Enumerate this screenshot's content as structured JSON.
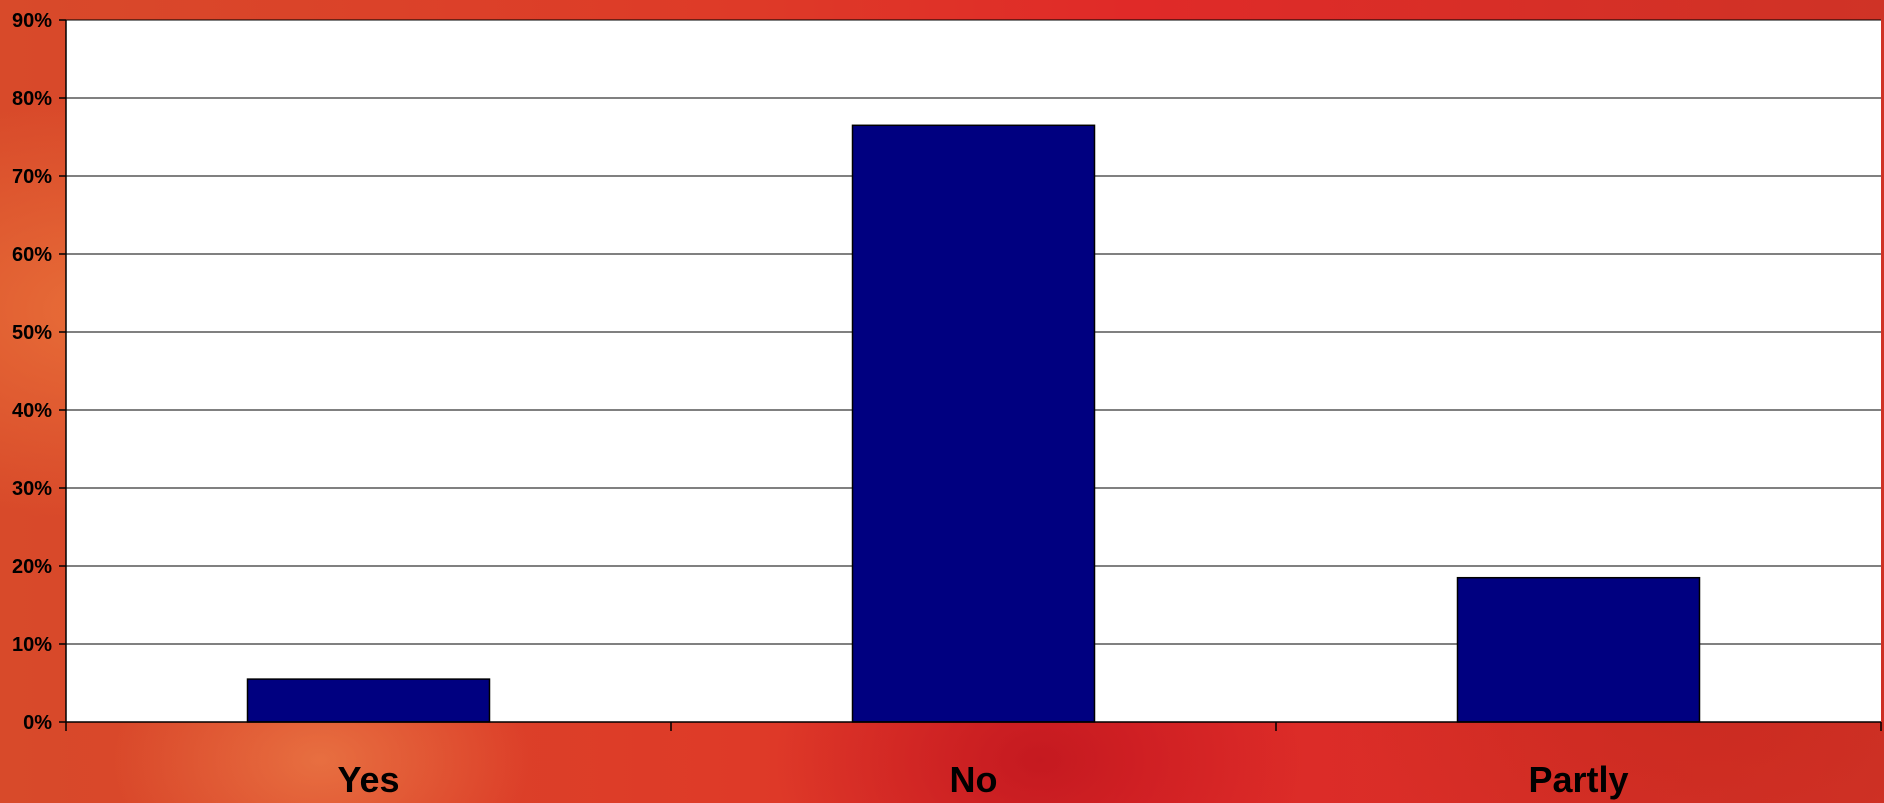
{
  "chart_data": {
    "type": "bar",
    "categories": [
      "Yes",
      "No",
      "Partly"
    ],
    "values": [
      5.5,
      76.5,
      18.5
    ],
    "ylim": [
      0,
      90
    ],
    "ytick_step": 10,
    "ytick_labels": [
      "0%",
      "10%",
      "20%",
      "30%",
      "40%",
      "50%",
      "60%",
      "70%",
      "80%",
      "90%"
    ],
    "y_unit": "%",
    "grid": true,
    "legend": "none",
    "title": "",
    "xlabel": "",
    "ylabel": "",
    "colors": {
      "bar": "#000080",
      "plot_background": "#ffffff",
      "gridline": "#000000"
    }
  }
}
